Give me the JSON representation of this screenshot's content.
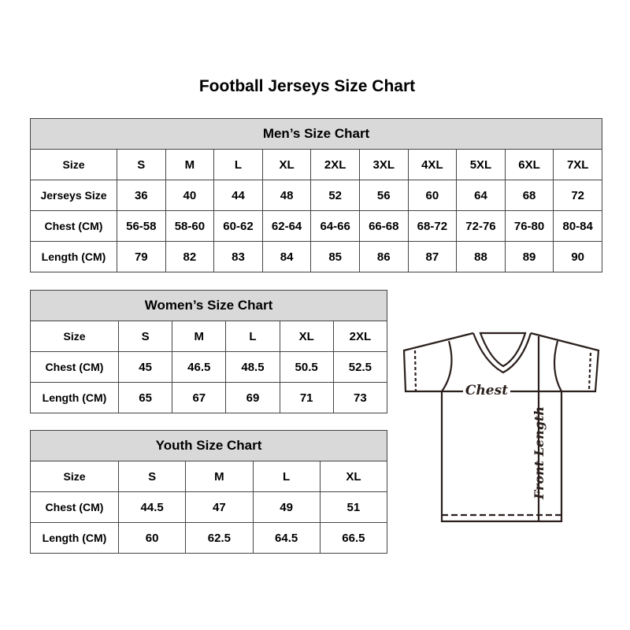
{
  "title": "Football Jerseys Size Chart",
  "men": {
    "heading": "Men’s Size Chart",
    "rows": [
      [
        "Size",
        "S",
        "M",
        "L",
        "XL",
        "2XL",
        "3XL",
        "4XL",
        "5XL",
        "6XL",
        "7XL"
      ],
      [
        "Jerseys Size",
        "36",
        "40",
        "44",
        "48",
        "52",
        "56",
        "60",
        "64",
        "68",
        "72"
      ],
      [
        "Chest (CM)",
        "56-58",
        "58-60",
        "60-62",
        "62-64",
        "64-66",
        "66-68",
        "68-72",
        "72-76",
        "76-80",
        "80-84"
      ],
      [
        "Length (CM)",
        "79",
        "82",
        "83",
        "84",
        "85",
        "86",
        "87",
        "88",
        "89",
        "90"
      ]
    ]
  },
  "women": {
    "heading": "Women’s Size Chart",
    "rows": [
      [
        "Size",
        "S",
        "M",
        "L",
        "XL",
        "2XL"
      ],
      [
        "Chest (CM)",
        "45",
        "46.5",
        "48.5",
        "50.5",
        "52.5"
      ],
      [
        "Length (CM)",
        "65",
        "67",
        "69",
        "71",
        "73"
      ]
    ]
  },
  "youth": {
    "heading": "Youth Size Chart",
    "rows": [
      [
        "Size",
        "S",
        "M",
        "L",
        "XL"
      ],
      [
        "Chest (CM)",
        "44.5",
        "47",
        "49",
        "51"
      ],
      [
        "Length (CM)",
        "60",
        "62.5",
        "64.5",
        "66.5"
      ]
    ]
  },
  "diagram": {
    "chest_label": "Chest",
    "length_label": "Front Length"
  },
  "colors": {
    "header_bg": "#d9d9d9",
    "border": "#444444",
    "outline": "#2a1f1c"
  }
}
